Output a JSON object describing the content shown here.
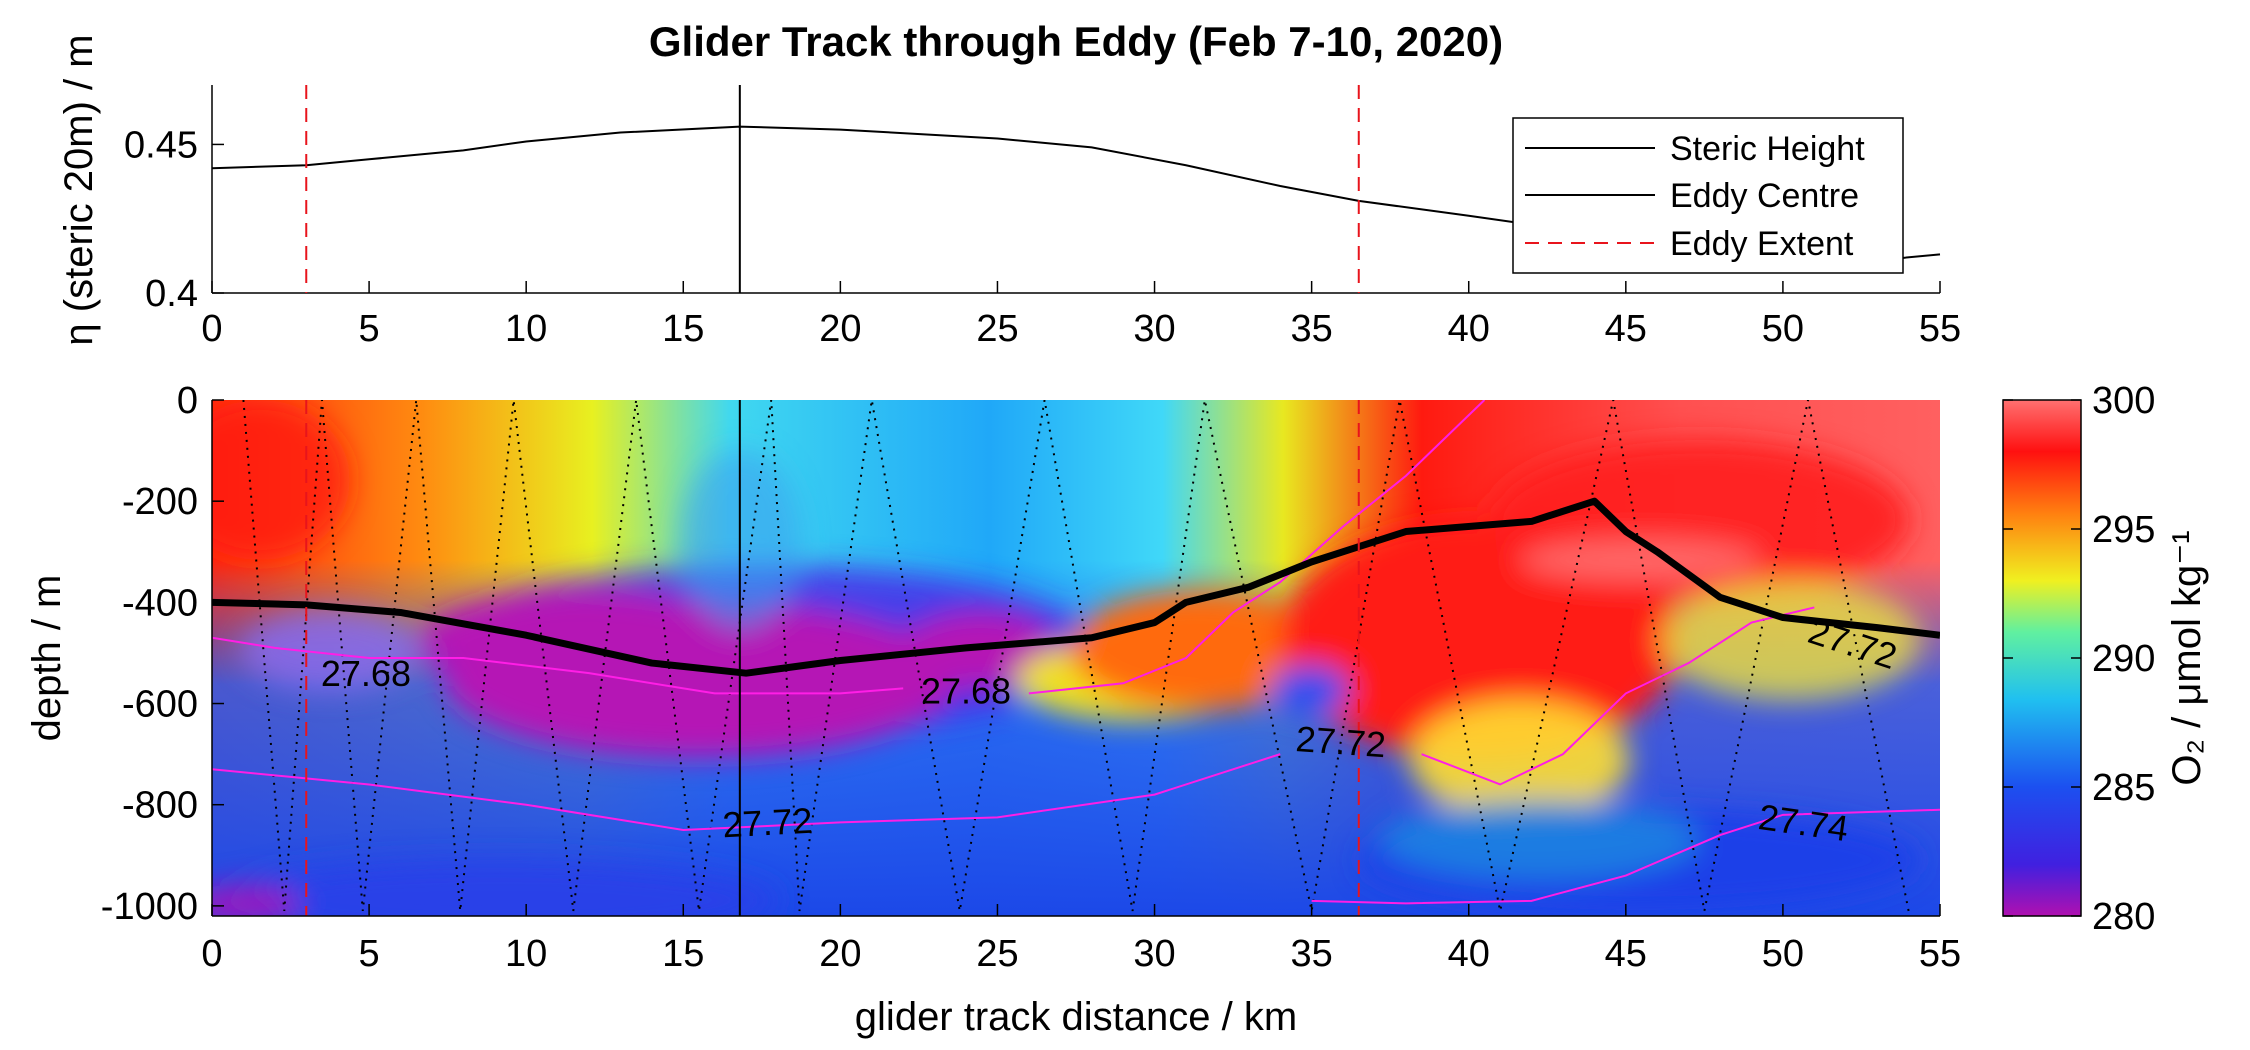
{
  "title": "Glider Track through Eddy (Feb  7-10, 2020)",
  "colors": {
    "steric_line": "#000000",
    "eddy_centre": "#000000",
    "eddy_extent": "#e8141c",
    "isopycnal": "#ff1ee6",
    "glider_track": "#000000"
  },
  "chart_data": [
    {
      "type": "line",
      "panel": "top",
      "xlabel": "",
      "ylabel": "η (steric 20m) / m",
      "xlim": [
        0,
        55
      ],
      "ylim": [
        0.4,
        0.47
      ],
      "xticks": [
        0,
        5,
        10,
        15,
        20,
        25,
        30,
        35,
        40,
        45,
        50,
        55
      ],
      "yticks": [
        0.4,
        0.45
      ],
      "ytick_labels": [
        "0.4",
        "0.45"
      ],
      "series": [
        {
          "name": "Steric Height",
          "x": [
            0,
            3,
            5,
            8,
            10,
            13,
            16.8,
            20,
            25,
            28,
            31,
            34,
            36.5,
            40,
            44,
            47,
            50,
            53,
            55
          ],
          "y": [
            0.442,
            0.443,
            0.445,
            0.448,
            0.451,
            0.454,
            0.456,
            0.455,
            0.452,
            0.449,
            0.443,
            0.436,
            0.431,
            0.426,
            0.42,
            0.416,
            0.413,
            0.411,
            0.413
          ]
        }
      ],
      "eddy_centre_x": 16.8,
      "eddy_extent_x": [
        3.0,
        36.5
      ],
      "legend": {
        "placement": "top-right",
        "entries": [
          "Steric Height",
          "Eddy Centre",
          "Eddy Extent"
        ]
      }
    },
    {
      "type": "heatmap",
      "panel": "bottom",
      "xlabel": "glider track distance / km",
      "ylabel": "depth / m",
      "xlim": [
        0,
        55
      ],
      "ylim": [
        -1020,
        0
      ],
      "xticks": [
        0,
        5,
        10,
        15,
        20,
        25,
        30,
        35,
        40,
        45,
        50,
        55
      ],
      "yticks": [
        0,
        -200,
        -400,
        -600,
        -800,
        -1000
      ],
      "colorbar": {
        "label": "O₂ / μmol kg⁻¹",
        "range": [
          280,
          300
        ],
        "ticks": [
          280,
          285,
          290,
          295,
          300
        ]
      },
      "thick_isopycnal": {
        "x": [
          0,
          3,
          6,
          10,
          14,
          17,
          20,
          24,
          28,
          30,
          31,
          33,
          35,
          36.5,
          38,
          42,
          44,
          45,
          46,
          48,
          50,
          53,
          55
        ],
        "y": [
          -400,
          -405,
          -420,
          -465,
          -520,
          -540,
          -515,
          -490,
          -470,
          -440,
          -400,
          -370,
          -320,
          -290,
          -260,
          -240,
          -200,
          -260,
          -300,
          -390,
          -430,
          -450,
          -465
        ]
      },
      "isopycnals": [
        {
          "label": "27.68",
          "x": [
            0,
            2,
            5,
            8,
            12,
            16,
            20,
            22
          ],
          "y": [
            -470,
            -490,
            -510,
            -510,
            -540,
            -580,
            -580,
            -570
          ]
        },
        {
          "label": "27.68",
          "x": [
            26,
            29,
            31,
            32.5,
            34,
            36,
            38,
            40.5
          ],
          "y": [
            -580,
            -560,
            -510,
            -420,
            -360,
            -250,
            -150,
            0
          ]
        },
        {
          "label": "27.72",
          "x": [
            0,
            5,
            10,
            15,
            20,
            25,
            30,
            34
          ],
          "y": [
            -730,
            -760,
            -800,
            -850,
            -835,
            -825,
            -780,
            -700
          ]
        },
        {
          "label": "27.72",
          "x": [
            38.5,
            41,
            43,
            45,
            47,
            49,
            51
          ],
          "y": [
            -700,
            -760,
            -700,
            -580,
            -520,
            -440,
            -410
          ]
        },
        {
          "label": "27.74",
          "x": [
            35,
            38,
            42,
            45,
            48,
            50,
            55
          ],
          "y": [
            -990,
            -995,
            -990,
            -940,
            -860,
            -820,
            -810
          ]
        }
      ],
      "contour_labels": [
        "27.68",
        "27.68",
        "27.72",
        "27.72",
        "27.72",
        "27.74"
      ],
      "glider_turnaround_km": [
        1.0,
        2.3,
        3.5,
        4.8,
        6.5,
        7.9,
        9.6,
        11.5,
        13.5,
        15.5,
        17.8,
        18.7,
        21,
        23.8,
        26.5,
        29.3,
        31.6,
        35,
        37.8,
        41,
        44.6,
        47.5,
        50.8,
        54
      ]
    }
  ]
}
